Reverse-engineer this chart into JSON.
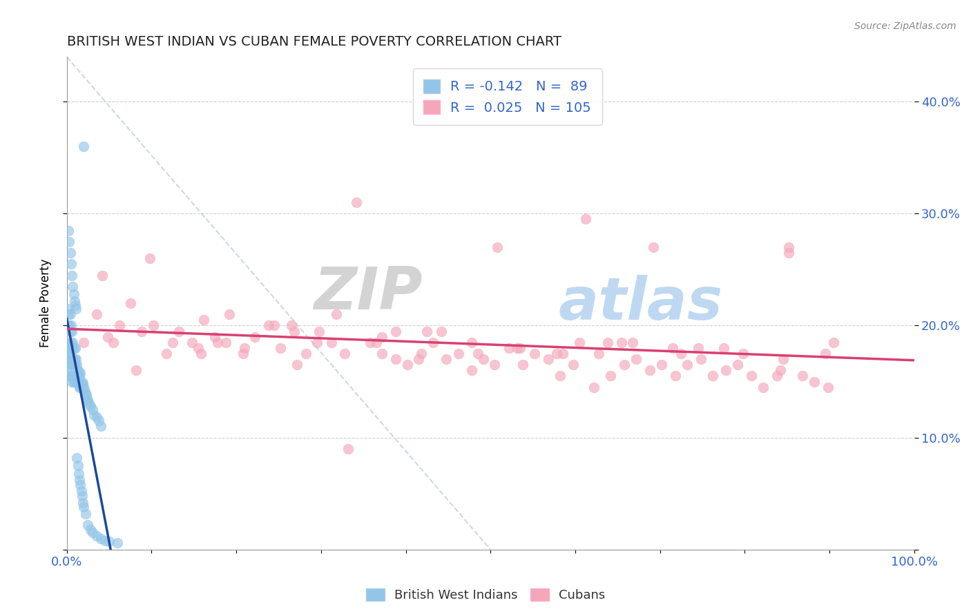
{
  "title": "BRITISH WEST INDIAN VS CUBAN FEMALE POVERTY CORRELATION CHART",
  "source": "Source: ZipAtlas.com",
  "ylabel": "Female Poverty",
  "y_ticks": [
    0.0,
    0.1,
    0.2,
    0.3,
    0.4
  ],
  "y_tick_labels": [
    "",
    "10.0%",
    "20.0%",
    "30.0%",
    "40.0%"
  ],
  "x_range": [
    0.0,
    1.0
  ],
  "y_range": [
    0.0,
    0.44
  ],
  "r_bwi": -0.142,
  "n_bwi": 89,
  "r_cuban": 0.025,
  "n_cuban": 105,
  "legend_label_bwi": "British West Indians",
  "legend_label_cuban": "Cubans",
  "color_bwi": "#92C5E8",
  "color_cuban": "#F4A7B9",
  "color_bwi_line": "#1A4A9B",
  "color_cuban_line": "#D94070",
  "color_text_blue": "#3366CC",
  "watermark_zip": "ZIP",
  "watermark_atlas": "atlas",
  "x_tick_positions": [
    0.0,
    0.1,
    0.2,
    0.3,
    0.4,
    0.5,
    0.6,
    0.7,
    0.8,
    0.9,
    1.0
  ],
  "bwi_x": [
    0.001,
    0.001,
    0.002,
    0.002,
    0.002,
    0.003,
    0.003,
    0.003,
    0.003,
    0.004,
    0.004,
    0.004,
    0.004,
    0.005,
    0.005,
    0.005,
    0.005,
    0.006,
    0.006,
    0.006,
    0.006,
    0.007,
    0.007,
    0.007,
    0.008,
    0.008,
    0.008,
    0.009,
    0.009,
    0.01,
    0.01,
    0.01,
    0.011,
    0.011,
    0.012,
    0.012,
    0.013,
    0.013,
    0.014,
    0.014,
    0.015,
    0.015,
    0.016,
    0.016,
    0.017,
    0.018,
    0.019,
    0.02,
    0.021,
    0.022,
    0.023,
    0.024,
    0.025,
    0.026,
    0.028,
    0.03,
    0.032,
    0.035,
    0.038,
    0.04,
    0.002,
    0.003,
    0.004,
    0.005,
    0.006,
    0.007,
    0.008,
    0.009,
    0.01,
    0.011,
    0.012,
    0.013,
    0.014,
    0.015,
    0.016,
    0.017,
    0.018,
    0.019,
    0.02,
    0.022,
    0.025,
    0.028,
    0.03,
    0.035,
    0.04,
    0.045,
    0.05,
    0.06,
    0.02
  ],
  "bwi_y": [
    0.175,
    0.2,
    0.165,
    0.185,
    0.21,
    0.155,
    0.18,
    0.2,
    0.215,
    0.16,
    0.175,
    0.195,
    0.21,
    0.155,
    0.17,
    0.185,
    0.2,
    0.15,
    0.165,
    0.18,
    0.195,
    0.155,
    0.17,
    0.185,
    0.15,
    0.165,
    0.18,
    0.155,
    0.17,
    0.15,
    0.165,
    0.18,
    0.155,
    0.17,
    0.15,
    0.165,
    0.15,
    0.16,
    0.148,
    0.158,
    0.145,
    0.155,
    0.145,
    0.158,
    0.148,
    0.15,
    0.148,
    0.145,
    0.143,
    0.14,
    0.138,
    0.135,
    0.133,
    0.13,
    0.128,
    0.125,
    0.12,
    0.118,
    0.115,
    0.11,
    0.285,
    0.275,
    0.265,
    0.255,
    0.245,
    0.235,
    0.228,
    0.222,
    0.218,
    0.215,
    0.082,
    0.075,
    0.068,
    0.062,
    0.058,
    0.052,
    0.048,
    0.042,
    0.038,
    0.032,
    0.022,
    0.018,
    0.015,
    0.012,
    0.01,
    0.008,
    0.007,
    0.006,
    0.36
  ],
  "cuban_x": [
    0.02,
    0.035,
    0.048,
    0.062,
    0.075,
    0.088,
    0.102,
    0.118,
    0.132,
    0.148,
    0.162,
    0.178,
    0.192,
    0.208,
    0.222,
    0.238,
    0.252,
    0.268,
    0.282,
    0.298,
    0.312,
    0.328,
    0.342,
    0.358,
    0.372,
    0.388,
    0.402,
    0.418,
    0.432,
    0.448,
    0.462,
    0.478,
    0.492,
    0.508,
    0.522,
    0.538,
    0.552,
    0.568,
    0.582,
    0.598,
    0.612,
    0.628,
    0.642,
    0.658,
    0.672,
    0.688,
    0.702,
    0.718,
    0.732,
    0.748,
    0.762,
    0.778,
    0.792,
    0.808,
    0.822,
    0.838,
    0.852,
    0.868,
    0.882,
    0.898,
    0.042,
    0.098,
    0.155,
    0.21,
    0.265,
    0.318,
    0.372,
    0.425,
    0.478,
    0.532,
    0.585,
    0.638,
    0.692,
    0.745,
    0.798,
    0.852,
    0.905,
    0.125,
    0.245,
    0.365,
    0.485,
    0.605,
    0.725,
    0.845,
    0.055,
    0.175,
    0.295,
    0.415,
    0.535,
    0.655,
    0.775,
    0.895,
    0.505,
    0.332,
    0.668,
    0.082,
    0.158,
    0.442,
    0.578,
    0.715,
    0.188,
    0.388,
    0.622,
    0.842,
    0.272
  ],
  "cuban_y": [
    0.185,
    0.21,
    0.19,
    0.2,
    0.22,
    0.195,
    0.2,
    0.175,
    0.195,
    0.185,
    0.205,
    0.185,
    0.21,
    0.175,
    0.19,
    0.2,
    0.18,
    0.195,
    0.175,
    0.195,
    0.185,
    0.175,
    0.31,
    0.185,
    0.175,
    0.195,
    0.165,
    0.175,
    0.185,
    0.17,
    0.175,
    0.16,
    0.17,
    0.27,
    0.18,
    0.165,
    0.175,
    0.17,
    0.155,
    0.165,
    0.295,
    0.175,
    0.155,
    0.165,
    0.17,
    0.16,
    0.165,
    0.155,
    0.165,
    0.17,
    0.155,
    0.16,
    0.165,
    0.155,
    0.145,
    0.155,
    0.265,
    0.155,
    0.15,
    0.145,
    0.245,
    0.26,
    0.18,
    0.18,
    0.2,
    0.21,
    0.19,
    0.195,
    0.185,
    0.18,
    0.175,
    0.185,
    0.27,
    0.18,
    0.175,
    0.27,
    0.185,
    0.185,
    0.2,
    0.185,
    0.175,
    0.185,
    0.175,
    0.17,
    0.185,
    0.19,
    0.185,
    0.17,
    0.18,
    0.185,
    0.18,
    0.175,
    0.165,
    0.09,
    0.185,
    0.16,
    0.175,
    0.195,
    0.175,
    0.18,
    0.185,
    0.17,
    0.145,
    0.16,
    0.165
  ]
}
